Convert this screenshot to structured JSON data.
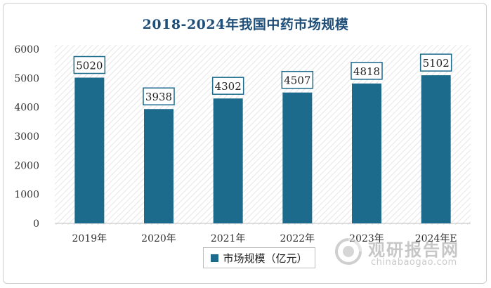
{
  "chart_data": {
    "type": "bar",
    "title": "2018-2024年我国中药市场规模",
    "categories": [
      "2019年",
      "2020年",
      "2021年",
      "2022年",
      "2023年",
      "2024年E"
    ],
    "series": [
      {
        "name": "市场规模（亿元）",
        "values": [
          5020,
          3938,
          4302,
          4507,
          4818,
          5102
        ]
      }
    ],
    "ylim": [
      0,
      6000
    ],
    "yticks": [
      0,
      1000,
      2000,
      3000,
      4000,
      5000,
      6000
    ],
    "xlabel": "",
    "ylabel": "",
    "grid": false,
    "legend": "bottom-center",
    "bar_color": "#1c6a8c",
    "label_border_color": "#1c6a8c"
  },
  "watermark": {
    "name_cn": "观研报告网",
    "url": "chinabaogao.com"
  }
}
